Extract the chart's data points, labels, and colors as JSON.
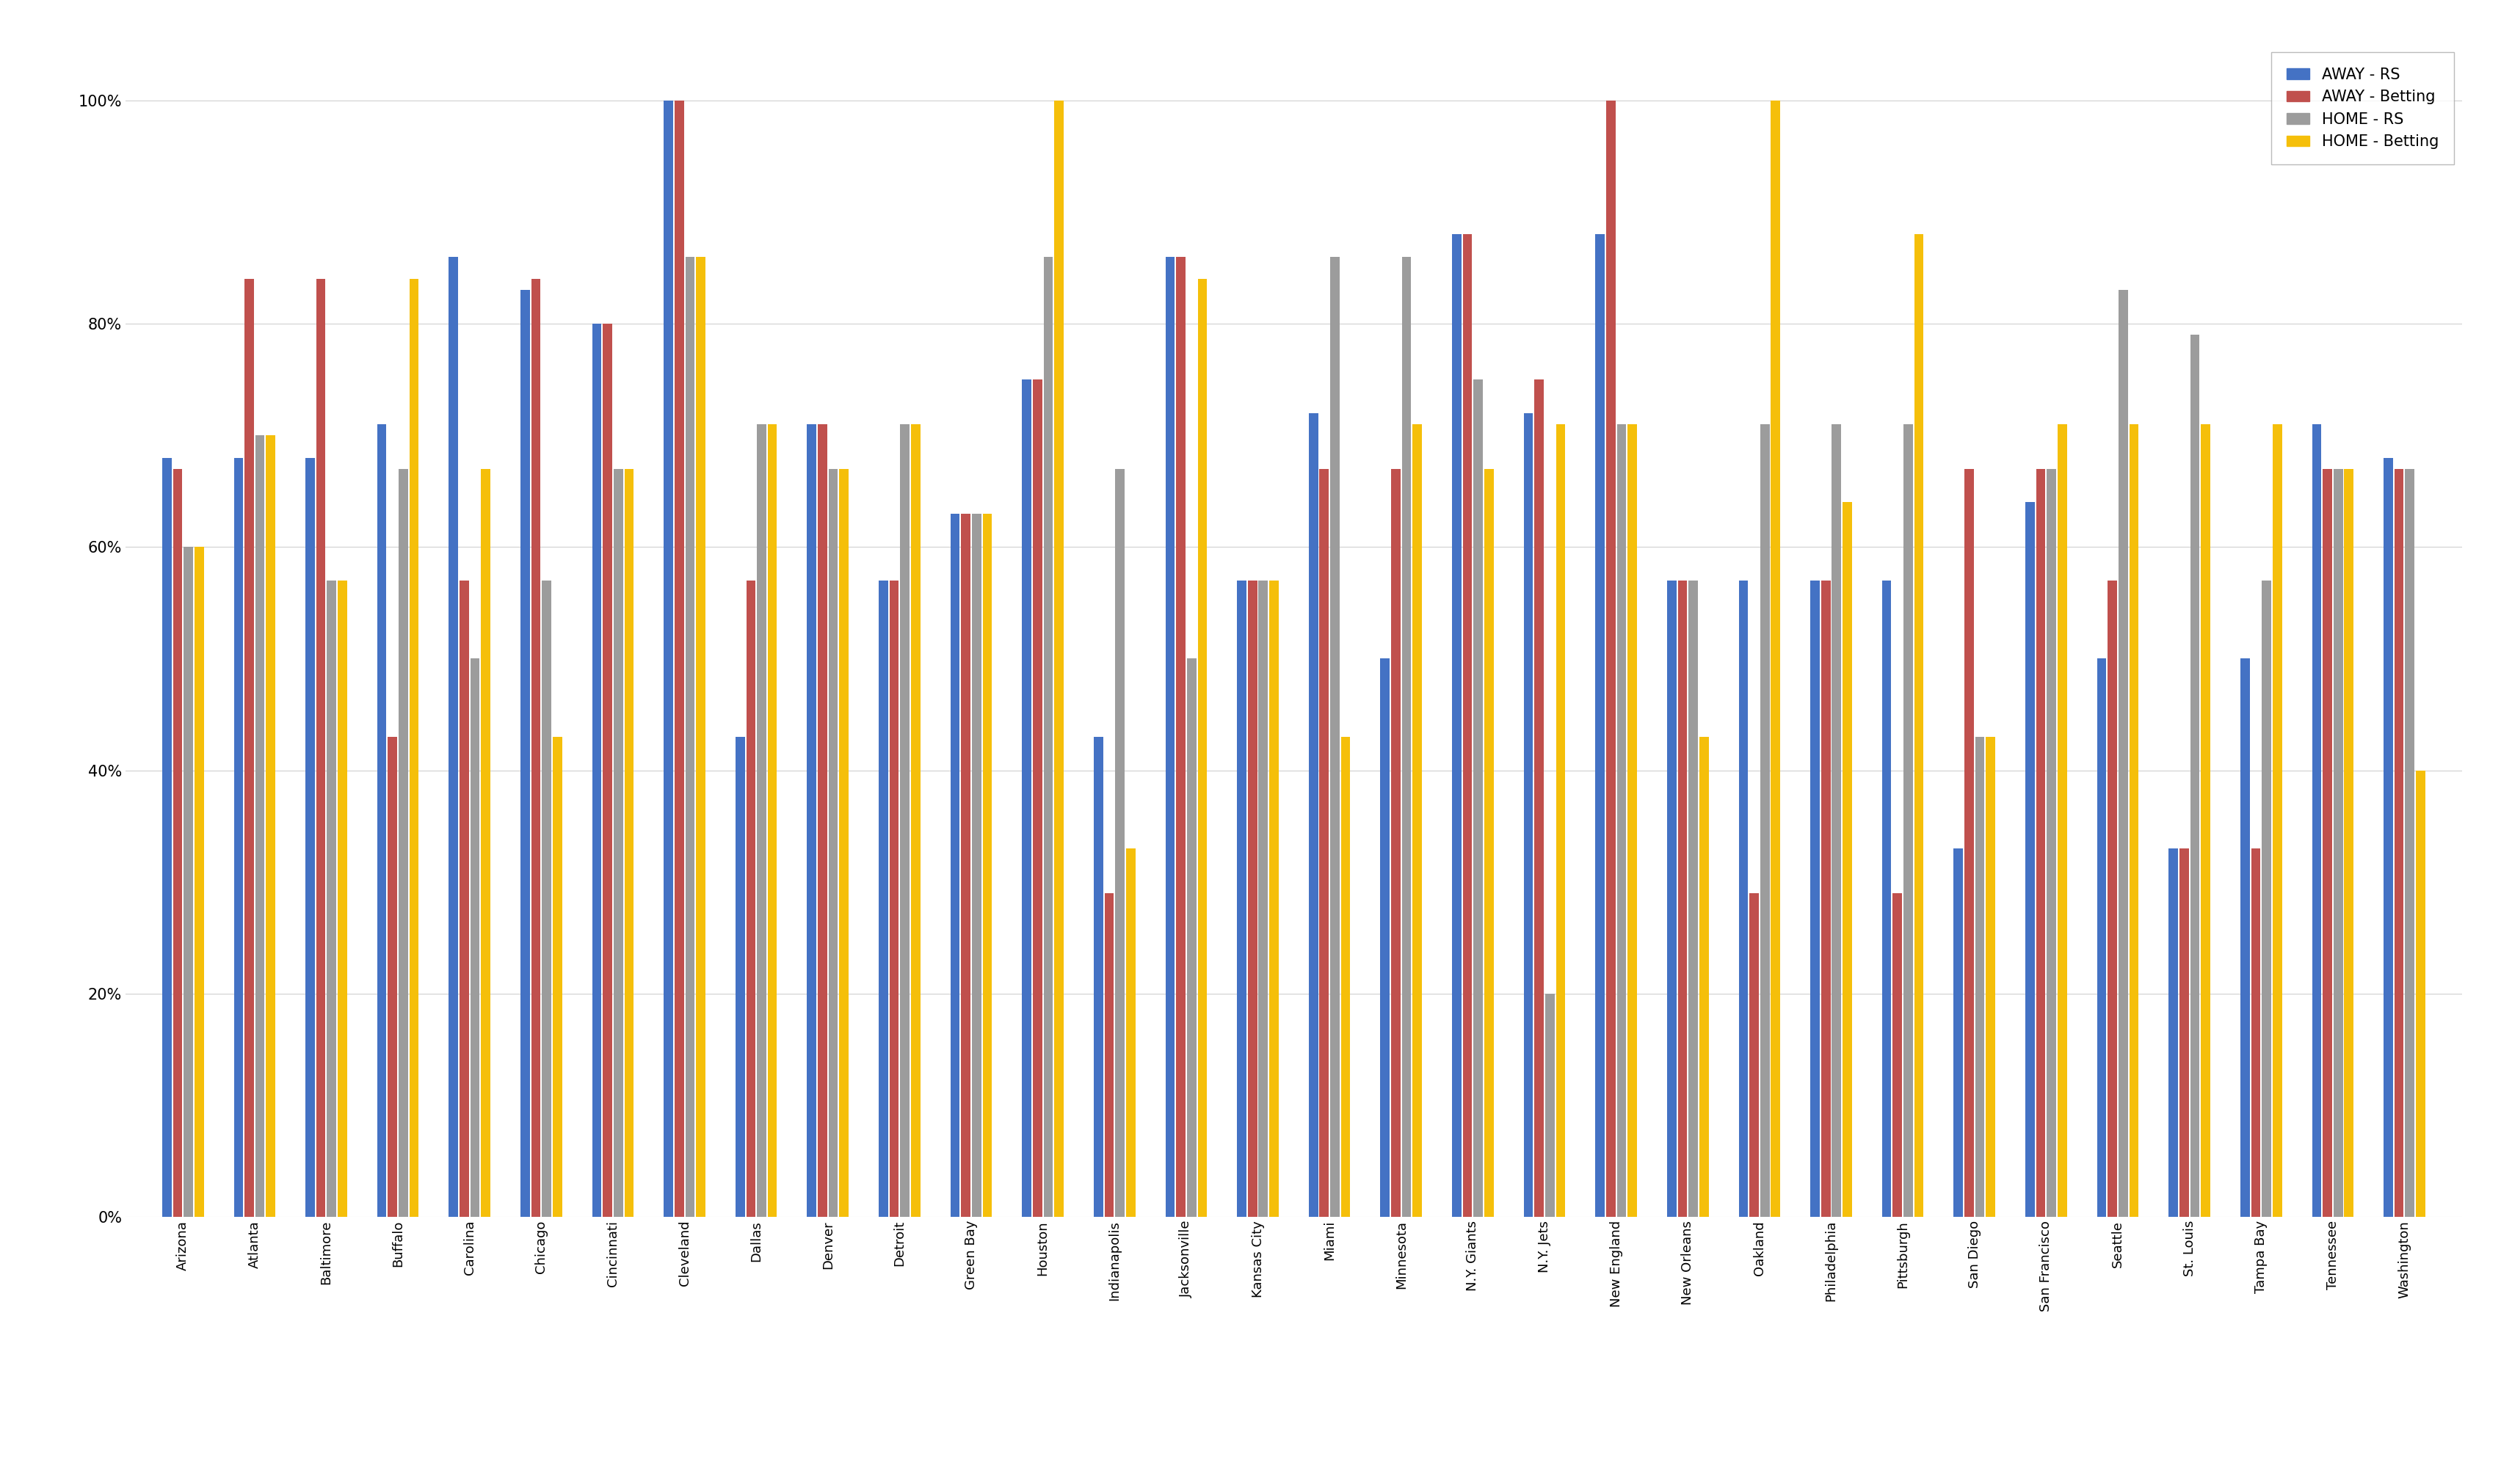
{
  "categories": [
    "Arizona",
    "Atlanta",
    "Baltimore",
    "Buffalo",
    "Carolina",
    "Chicago",
    "Cincinnati",
    "Cleveland",
    "Dallas",
    "Denver",
    "Detroit",
    "Green Bay",
    "Houston",
    "Indianapolis",
    "Jacksonville",
    "Kansas City",
    "Miami",
    "Minnesota",
    "N.Y. Giants",
    "N.Y. Jets",
    "New England",
    "New Orleans",
    "Oakland",
    "Philadelphia",
    "Pittsburgh",
    "San Diego",
    "San Francisco",
    "Seattle",
    "St. Louis",
    "Tampa Bay",
    "Tennessee",
    "Washington"
  ],
  "away_rs": [
    0.68,
    0.68,
    0.68,
    0.71,
    0.86,
    0.83,
    0.8,
    1.0,
    0.43,
    0.71,
    0.57,
    0.63,
    0.75,
    0.43,
    0.86,
    0.57,
    0.72,
    0.5,
    0.88,
    0.72,
    0.88,
    0.57,
    0.57,
    0.57,
    0.57,
    0.33,
    0.64,
    0.5,
    0.33,
    0.5,
    0.71,
    0.68
  ],
  "away_betting": [
    0.67,
    0.84,
    0.84,
    0.43,
    0.57,
    0.84,
    0.8,
    1.0,
    0.57,
    0.71,
    0.57,
    0.63,
    0.75,
    0.29,
    0.86,
    0.57,
    0.67,
    0.67,
    0.88,
    0.75,
    1.0,
    0.57,
    0.29,
    0.57,
    0.29,
    0.67,
    0.67,
    0.57,
    0.33,
    0.33,
    0.67,
    0.67
  ],
  "home_rs": [
    0.6,
    0.7,
    0.57,
    0.67,
    0.5,
    0.57,
    0.67,
    0.86,
    0.71,
    0.67,
    0.71,
    0.63,
    0.86,
    0.67,
    0.5,
    0.57,
    0.86,
    0.86,
    0.75,
    0.2,
    0.71,
    0.57,
    0.71,
    0.71,
    0.71,
    0.43,
    0.67,
    0.83,
    0.79,
    0.57,
    0.67,
    0.67
  ],
  "home_betting": [
    0.6,
    0.7,
    0.57,
    0.84,
    0.67,
    0.43,
    0.67,
    0.86,
    0.71,
    0.67,
    0.71,
    0.63,
    1.0,
    0.33,
    0.84,
    0.57,
    0.43,
    0.71,
    0.67,
    0.71,
    0.71,
    0.43,
    1.0,
    0.64,
    0.88,
    0.43,
    0.71,
    0.71,
    0.71,
    0.71,
    0.67,
    0.4
  ],
  "colors": {
    "away_rs": "#4472C4",
    "away_betting": "#C0504D",
    "home_rs": "#9C9C9C",
    "home_betting": "#F5BF0A"
  },
  "ylabel_labels": [
    "0%",
    "20%",
    "40%",
    "60%",
    "80%",
    "100%"
  ],
  "yticks": [
    0.0,
    0.2,
    0.4,
    0.6,
    0.8,
    1.0
  ],
  "background_color": "#FFFFFF",
  "grid_color": "#D0D0D0",
  "legend_labels": [
    "AWAY - RS",
    "AWAY - Betting",
    "HOME - RS",
    "HOME - Betting"
  ]
}
